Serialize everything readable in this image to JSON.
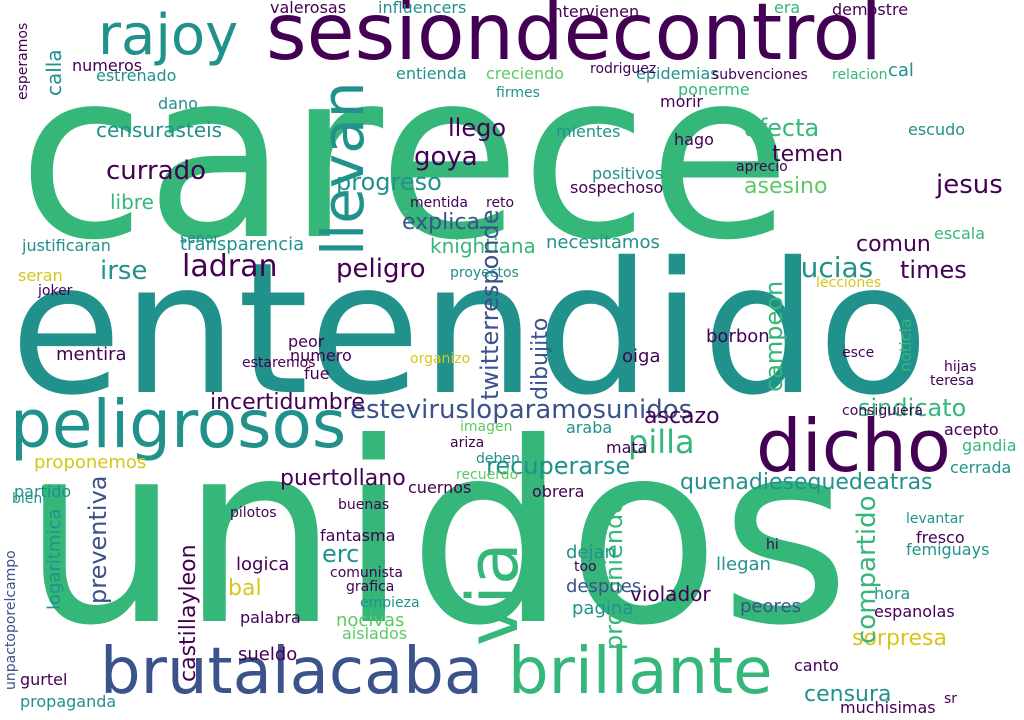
{
  "word_cloud": {
    "palette": {
      "purple": "#440154",
      "indigo": "#3b528b",
      "teal": "#21918c",
      "green": "#35b779",
      "lime": "#5ec962",
      "yellow": "#d8c51a"
    },
    "words": [
      {
        "text": "carece",
        "color": "#35b779"
      },
      {
        "text": "entendido",
        "color": "#21918c"
      },
      {
        "text": "unidos",
        "color": "#35b779"
      },
      {
        "text": "sesiondecontrol",
        "color": "#440154"
      },
      {
        "text": "peligrosos",
        "color": "#21918c"
      },
      {
        "text": "dicho",
        "color": "#440154"
      },
      {
        "text": "brutalacaba",
        "color": "#3b528b"
      },
      {
        "text": "brillante",
        "color": "#35b779"
      },
      {
        "text": "rajoy",
        "color": "#21918c"
      },
      {
        "text": "llevan",
        "color": "#21918c"
      },
      {
        "text": "via",
        "color": "#35b779"
      },
      {
        "text": "estevirusloparamosunidos",
        "color": "#3b528b"
      },
      {
        "text": "knightiana",
        "color": "#35b779"
      },
      {
        "text": "peligro",
        "color": "#440154"
      },
      {
        "text": "progreso",
        "color": "#21918c"
      },
      {
        "text": "currado",
        "color": "#440154"
      },
      {
        "text": "censurasteis",
        "color": "#21918c"
      },
      {
        "text": "ladran",
        "color": "#440154"
      },
      {
        "text": "irse",
        "color": "#21918c"
      },
      {
        "text": "sucias",
        "color": "#21918c"
      },
      {
        "text": "times",
        "color": "#440154"
      },
      {
        "text": "puertollano",
        "color": "#440154"
      },
      {
        "text": "incertidumbre",
        "color": "#440154"
      },
      {
        "text": "pilla",
        "color": "#35b779"
      },
      {
        "text": "ascazo",
        "color": "#440154"
      },
      {
        "text": "recuperarse",
        "color": "#21918c"
      },
      {
        "text": "quenadiesequedeatras",
        "color": "#21918c"
      },
      {
        "text": "sindicato",
        "color": "#35b779"
      },
      {
        "text": "proponemos",
        "color": "#d8c51a"
      },
      {
        "text": "erc",
        "color": "#21918c"
      },
      {
        "text": "bal",
        "color": "#d8c51a"
      },
      {
        "text": "preventiva",
        "color": "#3b528b"
      },
      {
        "text": "castillayleon",
        "color": "#440154"
      },
      {
        "text": "sorpresa",
        "color": "#d8c51a"
      },
      {
        "text": "censura",
        "color": "#21918c"
      },
      {
        "text": "jesus",
        "color": "#440154"
      },
      {
        "text": "afecta",
        "color": "#35b779"
      },
      {
        "text": "asesino",
        "color": "#5ec962"
      },
      {
        "text": "temen",
        "color": "#440154"
      },
      {
        "text": "llego",
        "color": "#440154"
      },
      {
        "text": "goya",
        "color": "#440154"
      },
      {
        "text": "explica",
        "color": "#3b528b"
      },
      {
        "text": "comun",
        "color": "#440154"
      },
      {
        "text": "twitterresponde",
        "color": "#3b528b"
      },
      {
        "text": "dibujito",
        "color": "#3b528b"
      },
      {
        "text": "campeon",
        "color": "#35b779"
      },
      {
        "text": "compartido",
        "color": "#35b779"
      },
      {
        "text": "proponiendo",
        "color": "#35b779"
      },
      {
        "text": "violador",
        "color": "#440154"
      },
      {
        "text": "peores",
        "color": "#3b528b"
      },
      {
        "text": "llegan",
        "color": "#21918c"
      },
      {
        "text": "dejan",
        "color": "#21918c"
      },
      {
        "text": "despues",
        "color": "#3b528b"
      },
      {
        "text": "pagina",
        "color": "#21918c"
      },
      {
        "text": "fantasma",
        "color": "#440154"
      },
      {
        "text": "nocivas",
        "color": "#5ec962"
      },
      {
        "text": "aislados",
        "color": "#5ec962"
      },
      {
        "text": "sueldo",
        "color": "#440154"
      },
      {
        "text": "gurtel",
        "color": "#440154"
      },
      {
        "text": "propaganda",
        "color": "#21918c"
      },
      {
        "text": "muchisimas",
        "color": "#440154"
      },
      {
        "text": "canto",
        "color": "#440154"
      },
      {
        "text": "necesitamos",
        "color": "#21918c"
      },
      {
        "text": "transparencia",
        "color": "#21918c"
      },
      {
        "text": "justificaran",
        "color": "#21918c"
      },
      {
        "text": "libre",
        "color": "#35b779"
      },
      {
        "text": "mentira",
        "color": "#440154"
      },
      {
        "text": "partido",
        "color": "#21918c"
      },
      {
        "text": "seran",
        "color": "#d8c51a"
      },
      {
        "text": "logaritmica",
        "color": "#21918c"
      },
      {
        "text": "unpactoporelcampo",
        "color": "#3b528b"
      },
      {
        "text": "logica",
        "color": "#440154"
      },
      {
        "text": "palabra",
        "color": "#440154"
      },
      {
        "text": "estaremos",
        "color": "#440154"
      },
      {
        "text": "numero",
        "color": "#440154"
      },
      {
        "text": "peor",
        "color": "#440154"
      },
      {
        "text": "fue",
        "color": "#440154"
      },
      {
        "text": "oiga",
        "color": "#440154"
      },
      {
        "text": "borbon",
        "color": "#440154"
      },
      {
        "text": "mata",
        "color": "#440154"
      },
      {
        "text": "araba",
        "color": "#21918c"
      },
      {
        "text": "cuernos",
        "color": "#440154"
      },
      {
        "text": "obrera",
        "color": "#440154"
      },
      {
        "text": "hora",
        "color": "#21918c"
      },
      {
        "text": "espanolas",
        "color": "#440154"
      },
      {
        "text": "comun",
        "color": "#440154"
      },
      {
        "text": "fresco",
        "color": "#440154"
      },
      {
        "text": "femiguays",
        "color": "#21918c"
      },
      {
        "text": "cerrada",
        "color": "#21918c"
      },
      {
        "text": "acepto",
        "color": "#440154"
      },
      {
        "text": "gandia",
        "color": "#35b779"
      },
      {
        "text": "noticia",
        "color": "#35b779"
      },
      {
        "text": "escudo",
        "color": "#21918c"
      },
      {
        "text": "escala",
        "color": "#35b779"
      },
      {
        "text": "aprecio",
        "color": "#440154"
      },
      {
        "text": "positivos",
        "color": "#21918c"
      },
      {
        "text": "sospechoso",
        "color": "#440154"
      },
      {
        "text": "mientes",
        "color": "#21918c"
      },
      {
        "text": "hago",
        "color": "#440154"
      },
      {
        "text": "dano",
        "color": "#21918c"
      },
      {
        "text": "estrenado",
        "color": "#21918c"
      },
      {
        "text": "numeros",
        "color": "#440154"
      },
      {
        "text": "esperamos",
        "color": "#440154"
      },
      {
        "text": "calla",
        "color": "#21918c"
      },
      {
        "text": "influencers",
        "color": "#21918c"
      },
      {
        "text": "valerosas",
        "color": "#440154"
      },
      {
        "text": "intervienen",
        "color": "#440154"
      },
      {
        "text": "demostre",
        "color": "#440154"
      },
      {
        "text": "era",
        "color": "#35b779"
      },
      {
        "text": "cal",
        "color": "#21918c"
      },
      {
        "text": "relacion",
        "color": "#35b779"
      },
      {
        "text": "creciendo",
        "color": "#5ec962"
      },
      {
        "text": "entienda",
        "color": "#21918c"
      },
      {
        "text": "epidemias",
        "color": "#21918c"
      },
      {
        "text": "subvenciones",
        "color": "#440154"
      },
      {
        "text": "ponerme",
        "color": "#35b779"
      },
      {
        "text": "morir",
        "color": "#440154"
      },
      {
        "text": "firmes",
        "color": "#21918c"
      },
      {
        "text": "rodriguez",
        "color": "#440154"
      },
      {
        "text": "senor",
        "color": "#21918c"
      },
      {
        "text": "joker",
        "color": "#440154"
      },
      {
        "text": "pilotos",
        "color": "#440154"
      },
      {
        "text": "proyectos",
        "color": "#21918c"
      },
      {
        "text": "mentida",
        "color": "#440154"
      },
      {
        "text": "reto",
        "color": "#440154"
      },
      {
        "text": "imagen",
        "color": "#5ec962"
      },
      {
        "text": "ariza",
        "color": "#440154"
      },
      {
        "text": "deben",
        "color": "#21918c"
      },
      {
        "text": "buenas",
        "color": "#440154"
      },
      {
        "text": "recuerdo",
        "color": "#5ec962"
      },
      {
        "text": "bien",
        "color": "#21918c"
      },
      {
        "text": "grafica",
        "color": "#440154"
      },
      {
        "text": "comunista",
        "color": "#440154"
      },
      {
        "text": "hi",
        "color": "#440154"
      },
      {
        "text": "levantar",
        "color": "#21918c"
      },
      {
        "text": "hijas",
        "color": "#440154"
      },
      {
        "text": "sr",
        "color": "#440154"
      },
      {
        "text": "consiguiera",
        "color": "#440154"
      },
      {
        "text": "organizo",
        "color": "#d8c51a"
      },
      {
        "text": "too",
        "color": "#440154"
      },
      {
        "text": "empieza",
        "color": "#21918c"
      },
      {
        "text": "explica",
        "color": "#3b528b"
      },
      {
        "text": "lecciones",
        "color": "#d8c51a"
      },
      {
        "text": "esce",
        "color": "#440154"
      },
      {
        "text": "teresa",
        "color": "#440154"
      }
    ]
  }
}
